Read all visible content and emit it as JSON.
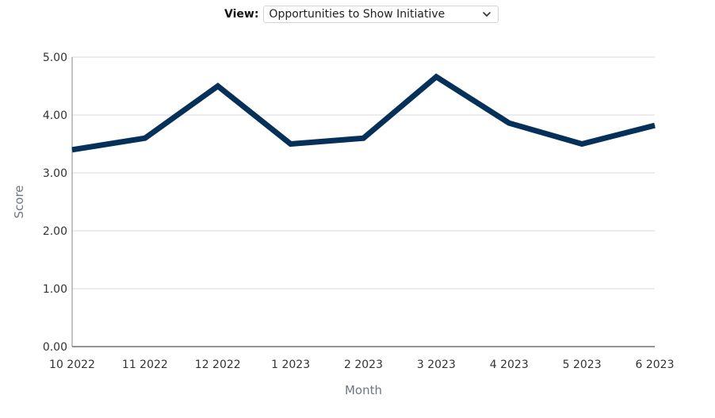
{
  "view": {
    "label": "View:",
    "selected": "Opportunities to Show Initiative",
    "chevron_icon": "chevron-down-icon"
  },
  "chart_data": {
    "type": "line",
    "title": "",
    "xlabel": "Month",
    "ylabel": "Score",
    "ylim": [
      0,
      5
    ],
    "yticks": [
      "0.00",
      "1.00",
      "2.00",
      "3.00",
      "4.00",
      "5.00"
    ],
    "categories": [
      "10 2022",
      "11 2022",
      "12 2022",
      "1 2023",
      "2 2023",
      "3 2023",
      "4 2023",
      "5 2023",
      "6 2023"
    ],
    "series": [
      {
        "values": [
          3.4,
          3.6,
          4.5,
          3.5,
          3.6,
          4.66,
          3.86,
          3.5,
          3.82
        ],
        "color": "#05305a"
      }
    ],
    "grid": true,
    "legend": "none"
  }
}
